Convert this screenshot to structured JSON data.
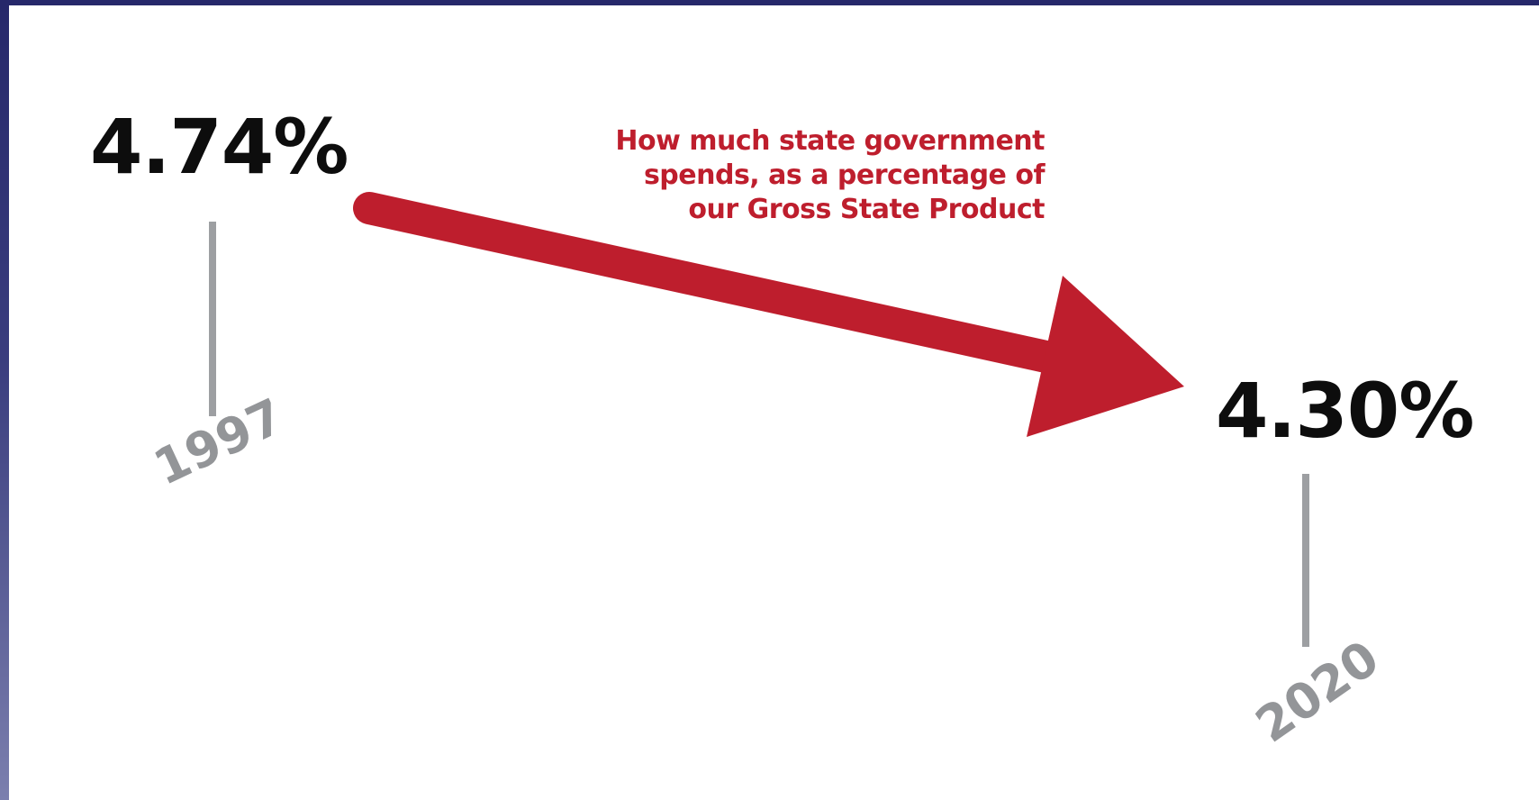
{
  "chart_data": {
    "type": "line",
    "title": "How much state government spends, as a percentage of our Gross State Product",
    "x": [
      "1997",
      "2020"
    ],
    "series": [
      {
        "values": [
          4.74,
          4.3
        ]
      }
    ],
    "value_labels": [
      "4.74%",
      "4.30%"
    ],
    "caption_lines": [
      "How much state government",
      "spends, as a percentage of",
      "our Gross State Product"
    ],
    "unit": "%",
    "grid": false
  },
  "colors": {
    "arrow": "#be1e2d",
    "caption": "#be1e2d",
    "value_text": "#0d0d0d",
    "year_text": "#939598",
    "tick_line": "#9d9fa2",
    "frame": "#2b2d6e"
  }
}
